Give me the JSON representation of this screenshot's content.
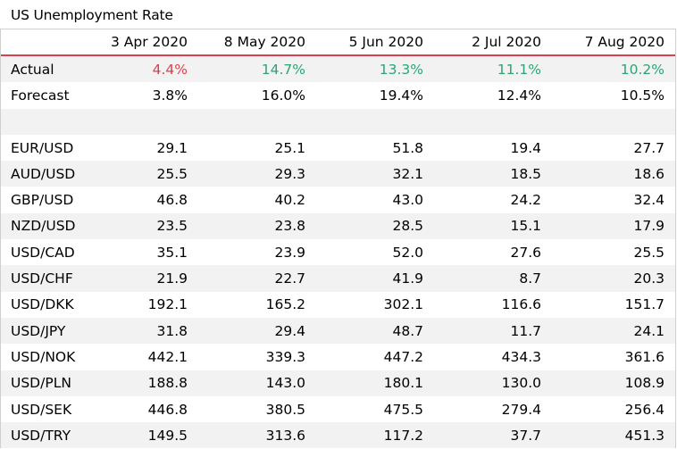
{
  "title": "US Unemployment Rate",
  "columns": [
    "",
    "3 Apr 2020",
    "8 May 2020",
    "5 Jun 2020",
    "2 Jul 2020",
    "7 Aug 2020"
  ],
  "colors": {
    "negative": "#d9424d",
    "positive": "#2fa373",
    "header_rule": "#d9424d",
    "band": "#f2f2f2"
  },
  "rows": [
    {
      "label": "Actual",
      "values": [
        "4.4%",
        "14.7%",
        "13.3%",
        "11.1%",
        "10.2%"
      ],
      "value_colors": [
        "red",
        "green",
        "green",
        "green",
        "green"
      ]
    },
    {
      "label": "Forecast",
      "values": [
        "3.8%",
        "16.0%",
        "19.4%",
        "12.4%",
        "10.5%"
      ]
    },
    {
      "label": "",
      "values": [
        "",
        "",
        "",
        "",
        ""
      ]
    },
    {
      "label": "EUR/USD",
      "values": [
        "29.1",
        "25.1",
        "51.8",
        "19.4",
        "27.7"
      ]
    },
    {
      "label": "AUD/USD",
      "values": [
        "25.5",
        "29.3",
        "32.1",
        "18.5",
        "18.6"
      ]
    },
    {
      "label": "GBP/USD",
      "values": [
        "46.8",
        "40.2",
        "43.0",
        "24.2",
        "32.4"
      ]
    },
    {
      "label": "NZD/USD",
      "values": [
        "23.5",
        "23.8",
        "28.5",
        "15.1",
        "17.9"
      ]
    },
    {
      "label": "USD/CAD",
      "values": [
        "35.1",
        "23.9",
        "52.0",
        "27.6",
        "25.5"
      ]
    },
    {
      "label": "USD/CHF",
      "values": [
        "21.9",
        "22.7",
        "41.9",
        "8.7",
        "20.3"
      ]
    },
    {
      "label": "USD/DKK",
      "values": [
        "192.1",
        "165.2",
        "302.1",
        "116.6",
        "151.7"
      ]
    },
    {
      "label": "USD/JPY",
      "values": [
        "31.8",
        "29.4",
        "48.7",
        "11.7",
        "24.1"
      ]
    },
    {
      "label": "USD/NOK",
      "values": [
        "442.1",
        "339.3",
        "447.2",
        "434.3",
        "361.6"
      ]
    },
    {
      "label": "USD/PLN",
      "values": [
        "188.8",
        "143.0",
        "180.1",
        "130.0",
        "108.9"
      ]
    },
    {
      "label": "USD/SEK",
      "values": [
        "446.8",
        "380.5",
        "475.5",
        "279.4",
        "256.4"
      ]
    },
    {
      "label": "USD/TRY",
      "values": [
        "149.5",
        "313.6",
        "117.2",
        "37.7",
        "451.3"
      ]
    }
  ]
}
